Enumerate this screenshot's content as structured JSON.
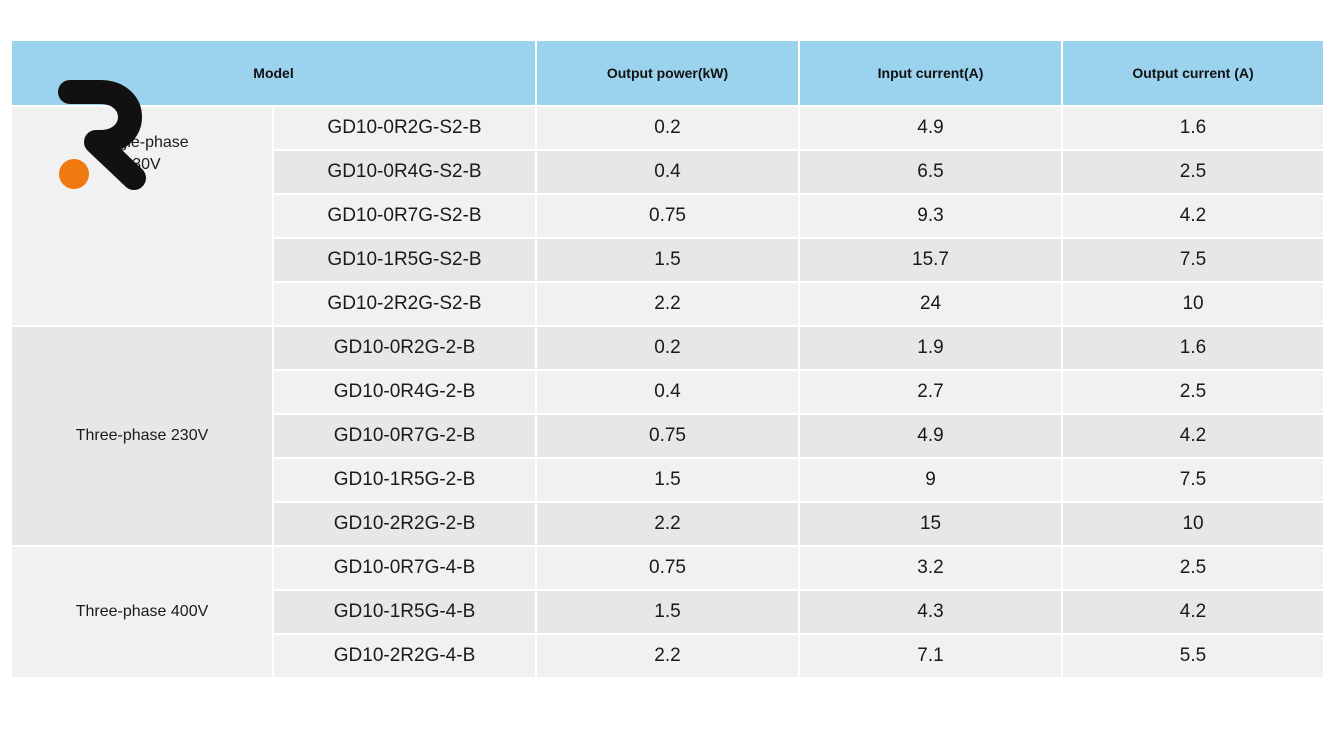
{
  "headers": {
    "model": "Model",
    "output_power": "Output power(kW)",
    "input_current": "Input current(A)",
    "output_current": "Output current (A)"
  },
  "logo": {
    "icon": "r-letter-logo",
    "colors": {
      "letter": "#111111",
      "dot": "#f07a12"
    }
  },
  "colors": {
    "header_bg": "#9bd3ee",
    "row_light": "#f1f1f1",
    "row_dark": "#e7e7e7"
  },
  "groups": [
    {
      "label": "Single-phase\n230V",
      "rows": [
        {
          "model": "GD10-0R2G-S2-B",
          "power": "0.2",
          "input": "4.9",
          "output": "1.6"
        },
        {
          "model": "GD10-0R4G-S2-B",
          "power": "0.4",
          "input": "6.5",
          "output": "2.5"
        },
        {
          "model": "GD10-0R7G-S2-B",
          "power": "0.75",
          "input": "9.3",
          "output": "4.2"
        },
        {
          "model": "GD10-1R5G-S2-B",
          "power": "1.5",
          "input": "15.7",
          "output": "7.5"
        },
        {
          "model": "GD10-2R2G-S2-B",
          "power": "2.2",
          "input": "24",
          "output": "10"
        }
      ]
    },
    {
      "label": "Three-phase 230V",
      "rows": [
        {
          "model": "GD10-0R2G-2-B",
          "power": "0.2",
          "input": "1.9",
          "output": "1.6"
        },
        {
          "model": "GD10-0R4G-2-B",
          "power": "0.4",
          "input": "2.7",
          "output": "2.5"
        },
        {
          "model": "GD10-0R7G-2-B",
          "power": "0.75",
          "input": "4.9",
          "output": "4.2"
        },
        {
          "model": "GD10-1R5G-2-B",
          "power": "1.5",
          "input": "9",
          "output": "7.5"
        },
        {
          "model": "GD10-2R2G-2-B",
          "power": "2.2",
          "input": "15",
          "output": "10"
        }
      ]
    },
    {
      "label": "Three-phase 400V",
      "rows": [
        {
          "model": "GD10-0R7G-4-B",
          "power": "0.75",
          "input": "3.2",
          "output": "2.5"
        },
        {
          "model": "GD10-1R5G-4-B",
          "power": "1.5",
          "input": "4.3",
          "output": "4.2"
        },
        {
          "model": "GD10-2R2G-4-B",
          "power": "2.2",
          "input": "7.1",
          "output": "5.5"
        }
      ]
    }
  ]
}
